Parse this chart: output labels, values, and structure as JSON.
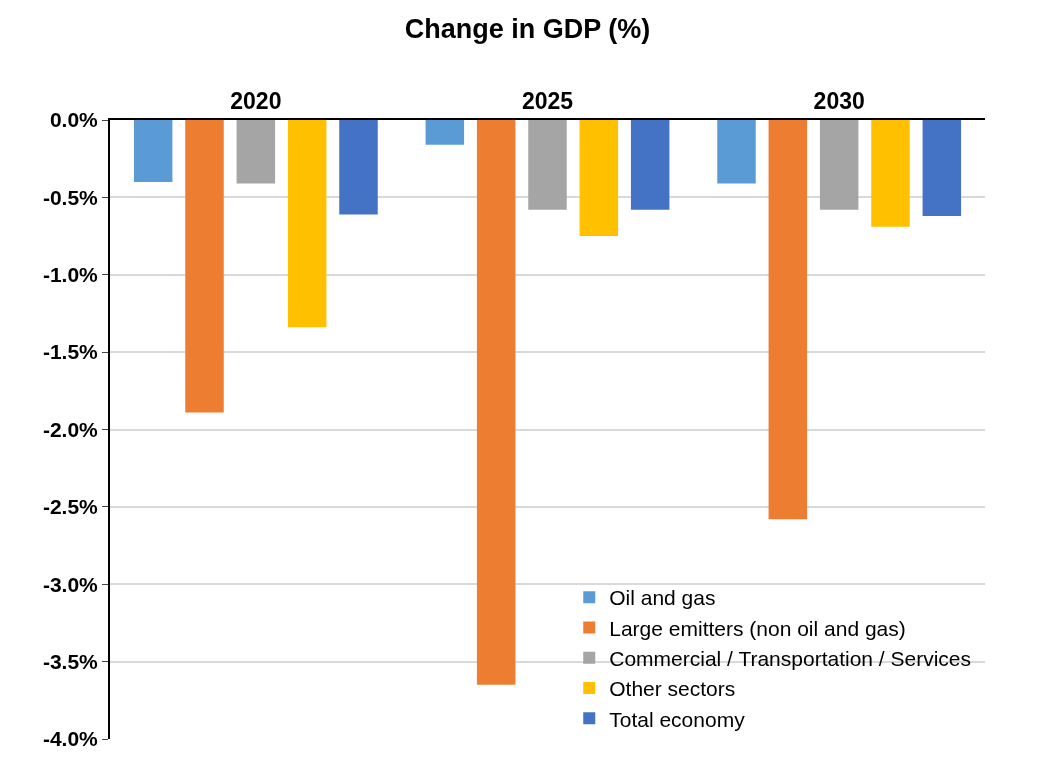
{
  "chart_data": {
    "type": "bar",
    "title": "Change in GDP (%)",
    "categories": [
      "2020",
      "2025",
      "2030"
    ],
    "series": [
      {
        "name": "Oil and gas",
        "color": "#5b9bd5",
        "values": [
          -0.4,
          -0.16,
          -0.41
        ]
      },
      {
        "name": "Large emitters (non oil and gas)",
        "color": "#ed7d31",
        "values": [
          -1.89,
          -3.65,
          -2.58
        ]
      },
      {
        "name": "Commercial / Transportation / Services",
        "color": "#a5a5a5",
        "values": [
          -0.41,
          -0.58,
          -0.58
        ]
      },
      {
        "name": "Other sectors",
        "color": "#ffc000",
        "values": [
          -1.34,
          -0.75,
          -0.69
        ]
      },
      {
        "name": "Total economy",
        "color": "#4472c4",
        "values": [
          -0.61,
          -0.58,
          -0.62
        ]
      }
    ],
    "ylim": [
      -4.0,
      0.0
    ],
    "yticks": [
      {
        "value": 0.0,
        "label": "0.0%"
      },
      {
        "value": -0.5,
        "label": "-0.5%"
      },
      {
        "value": -1.0,
        "label": "-1.0%"
      },
      {
        "value": -1.5,
        "label": "-1.5%"
      },
      {
        "value": -2.0,
        "label": "-2.0%"
      },
      {
        "value": -2.5,
        "label": "-2.5%"
      },
      {
        "value": -3.0,
        "label": "-3.0%"
      },
      {
        "value": -3.5,
        "label": "-3.5%"
      },
      {
        "value": -4.0,
        "label": "-4.0%"
      }
    ],
    "grid": "y",
    "legend": "bottom right"
  }
}
